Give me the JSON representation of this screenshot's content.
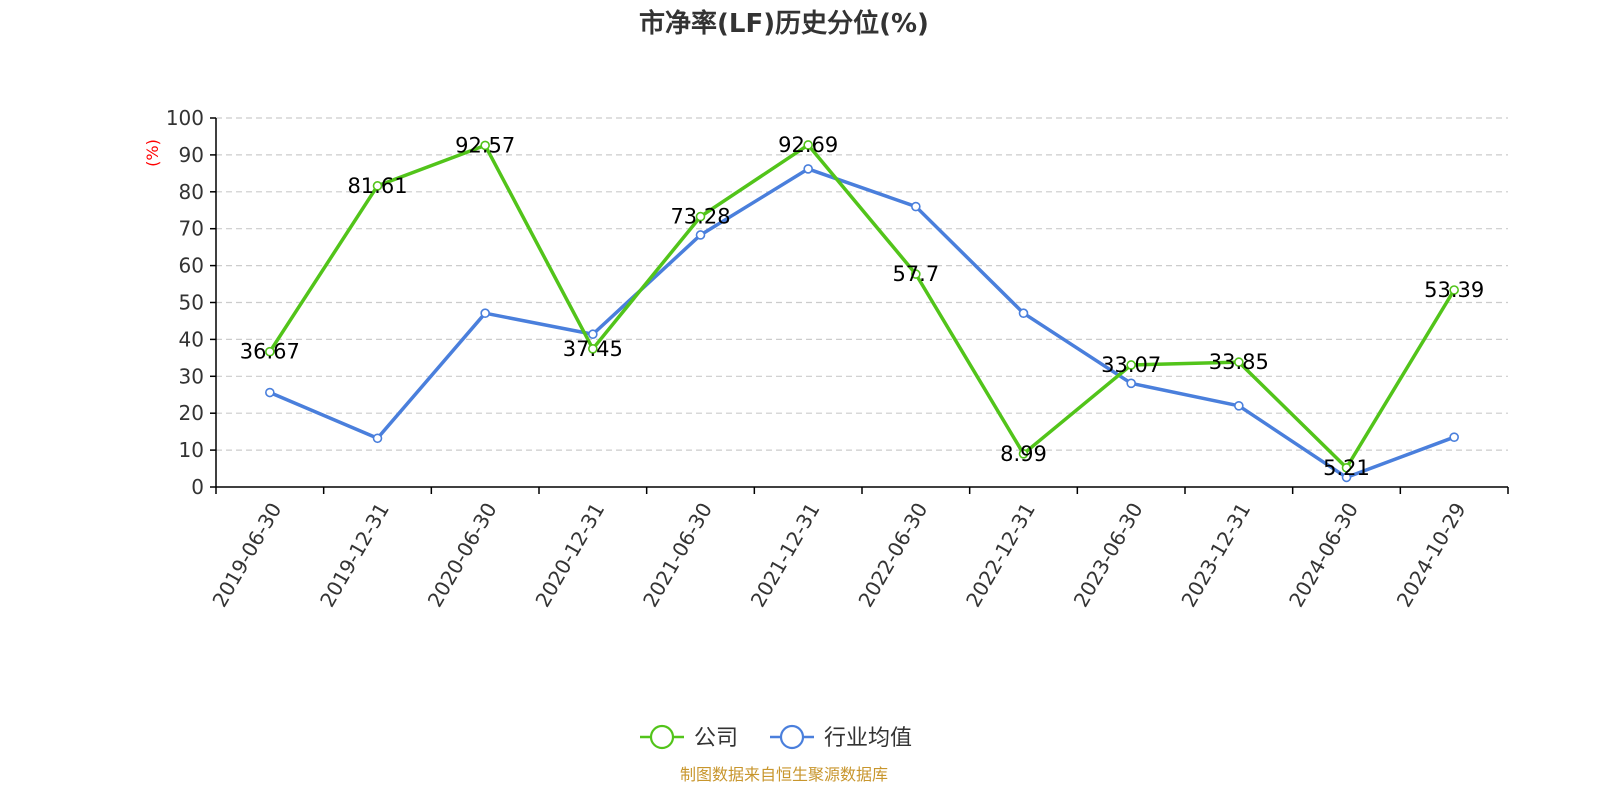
{
  "chart_data": {
    "type": "line",
    "title": "市净率(LF)历史分位(%)",
    "ylabel": "(%)",
    "xlabel": "",
    "ylim": [
      0,
      100
    ],
    "yticks": [
      0,
      10,
      20,
      30,
      40,
      50,
      60,
      70,
      80,
      90,
      100
    ],
    "grid": true,
    "legend_position": "bottom-center",
    "categories": [
      "2019-06-30",
      "2019-12-31",
      "2020-06-30",
      "2020-12-31",
      "2021-06-30",
      "2021-12-31",
      "2022-06-30",
      "2022-12-31",
      "2023-06-30",
      "2023-12-31",
      "2024-06-30",
      "2024-10-29"
    ],
    "series": [
      {
        "name": "公司",
        "color": "#52c41a",
        "show_labels": true,
        "values": [
          36.67,
          81.61,
          92.57,
          37.45,
          73.28,
          92.69,
          57.7,
          8.99,
          33.07,
          33.85,
          5.21,
          53.39
        ]
      },
      {
        "name": "行业均值",
        "color": "#4a7fdc",
        "show_labels": false,
        "values": [
          25.6,
          13.2,
          47.1,
          41.4,
          68.3,
          86.2,
          76.0,
          47.1,
          28.1,
          22.0,
          2.6,
          13.5
        ]
      }
    ]
  },
  "source_note": "制图数据来自恒生聚源数据库"
}
